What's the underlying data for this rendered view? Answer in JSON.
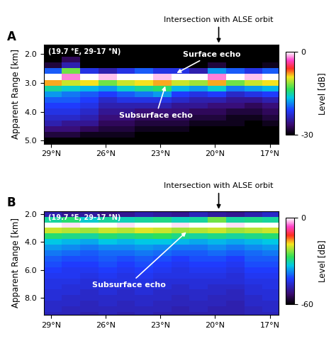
{
  "chart_data": [
    {
      "type": "heatmap",
      "panel": "A",
      "subtitle": "(19.7 °E, 29-17 °N)",
      "ylabel": "Apparent Range [km]",
      "xlim": [
        29.4,
        16.5
      ],
      "xticks": [
        {
          "value": 29,
          "label": "29°N"
        },
        {
          "value": 26,
          "label": "26°N"
        },
        {
          "value": 23,
          "label": "23°N"
        },
        {
          "value": 20,
          "label": "20°N"
        },
        {
          "value": 17,
          "label": "17°N"
        }
      ],
      "ylim": [
        5.1,
        1.7
      ],
      "yticks": [
        {
          "value": 2,
          "label": "2.0"
        },
        {
          "value": 3,
          "label": "3.0"
        },
        {
          "value": 4,
          "label": "4.0"
        },
        {
          "value": 5,
          "label": "5.0"
        }
      ],
      "x_edges": [
        29.4,
        28.4,
        27.4,
        26.4,
        25.4,
        24.4,
        23.4,
        22.4,
        21.4,
        20.4,
        19.4,
        18.4,
        17.4,
        16.5
      ],
      "y_edges": [
        1.7,
        1.9,
        2.1,
        2.3,
        2.5,
        2.7,
        2.9,
        3.1,
        3.3,
        3.5,
        3.7,
        3.9,
        4.1,
        4.3,
        4.5,
        4.7,
        4.9,
        5.1
      ],
      "cells": [
        [
          -30,
          -30,
          -30,
          -30,
          -30,
          -30,
          -30,
          -30,
          -30,
          -30,
          -30,
          -30,
          -30
        ],
        [
          -30,
          -30,
          -30,
          -30,
          -30,
          -30,
          -30,
          -30,
          -30,
          -30,
          -30,
          -30,
          -30
        ],
        [
          -30,
          -27,
          -30,
          -30,
          -30,
          -30,
          -30,
          -30,
          -30,
          -30,
          -30,
          -30,
          -30
        ],
        [
          -28,
          -24,
          -30,
          -30,
          -30,
          -30,
          -30,
          -30,
          -30,
          -28,
          -30,
          -30,
          -29
        ],
        [
          -20,
          -12,
          -22,
          -24,
          -22,
          -20,
          -22,
          -22,
          -24,
          -18,
          -20,
          -22,
          -20
        ],
        [
          0,
          -2,
          0,
          -1,
          0,
          0,
          -1,
          0,
          0,
          -2,
          0,
          -1,
          0
        ],
        [
          -8,
          -10,
          -9,
          -12,
          -10,
          -9,
          -8,
          -10,
          -11,
          -8,
          -12,
          -10,
          -9
        ],
        [
          -15,
          -16,
          -17,
          -18,
          -16,
          -15,
          -14,
          -17,
          -18,
          -16,
          -19,
          -18,
          -17
        ],
        [
          -18,
          -19,
          -20,
          -21,
          -20,
          -19,
          -18,
          -21,
          -22,
          -21,
          -23,
          -22,
          -21
        ],
        [
          -20,
          -20,
          -21,
          -23,
          -22,
          -22,
          -22,
          -23,
          -24,
          -24,
          -25,
          -25,
          -24
        ],
        [
          -21,
          -21,
          -22,
          -24,
          -24,
          -24,
          -24,
          -25,
          -25,
          -26,
          -26,
          -27,
          -26
        ],
        [
          -22,
          -22,
          -23,
          -25,
          -25,
          -26,
          -26,
          -26,
          -27,
          -27,
          -28,
          -28,
          -27
        ],
        [
          -23,
          -23,
          -24,
          -26,
          -26,
          -27,
          -27,
          -27,
          -28,
          -28,
          -29,
          -29,
          -28
        ],
        [
          -24,
          -25,
          -25,
          -27,
          -27,
          -28,
          -28,
          -28,
          -29,
          -29,
          -29,
          -30,
          -29
        ],
        [
          -26,
          -26,
          -27,
          -28,
          -28,
          -29,
          -29,
          -29,
          -30,
          -30,
          -30,
          -30,
          -30
        ],
        [
          -28,
          -28,
          -29,
          -29,
          -29,
          -30,
          -30,
          -30,
          -30,
          -30,
          -30,
          -30,
          -30
        ],
        [
          -30,
          -30,
          -30,
          -30,
          -30,
          -30,
          -30,
          -30,
          -30,
          -30,
          -30,
          -30,
          -30
        ]
      ],
      "colorbar": {
        "label": "Level [dB]",
        "range": [
          -30,
          0
        ],
        "ticks": [
          0,
          -30
        ]
      },
      "annotations": [
        {
          "text": "Intersection with ALSE orbit",
          "x": 19.8
        },
        {
          "text": "Surface echo",
          "x": 22.2,
          "y": 2.7
        },
        {
          "text": "Subsurface echo",
          "x": 22.7,
          "y": 3.05
        }
      ]
    },
    {
      "type": "heatmap",
      "panel": "B",
      "subtitle": "(19.7 °E, 29-17 °N)",
      "ylabel": "Apparent Range [km]",
      "xlim": [
        29.4,
        16.5
      ],
      "xticks": [
        {
          "value": 29,
          "label": "29°N"
        },
        {
          "value": 26,
          "label": "26°N"
        },
        {
          "value": 23,
          "label": "23°N"
        },
        {
          "value": 20,
          "label": "20°N"
        },
        {
          "value": 17,
          "label": "17°N"
        }
      ],
      "ylim": [
        9.2,
        1.8
      ],
      "yticks": [
        {
          "value": 2,
          "label": "2.0"
        },
        {
          "value": 4,
          "label": "4.0"
        },
        {
          "value": 6,
          "label": "6.0"
        },
        {
          "value": 8,
          "label": "8.0"
        }
      ],
      "x_edges": [
        29.4,
        28.4,
        27.4,
        26.4,
        25.4,
        24.4,
        23.4,
        22.4,
        21.4,
        20.4,
        19.4,
        18.4,
        17.4,
        16.5
      ],
      "y_edges": [
        1.8,
        2.2,
        2.6,
        3.0,
        3.4,
        3.8,
        4.2,
        4.6,
        5.0,
        5.4,
        5.8,
        6.2,
        6.6,
        7.0,
        7.4,
        7.8,
        8.2,
        8.6,
        9.0,
        9.4
      ],
      "cells": [
        [
          -48,
          -50,
          -49,
          -51,
          -50,
          -48,
          -49,
          -50,
          -47,
          -49,
          -50,
          -48,
          -46
        ],
        [
          -30,
          -28,
          -32,
          -30,
          -31,
          -30,
          -29,
          -31,
          -30,
          -24,
          -30,
          -29,
          -30
        ],
        [
          0,
          -1,
          0,
          0,
          -1,
          0,
          0,
          -1,
          0,
          0,
          -1,
          0,
          0
        ],
        [
          -20,
          -21,
          -22,
          -20,
          -21,
          -19,
          -20,
          -22,
          -21,
          -20,
          -22,
          -21,
          -20
        ],
        [
          -28,
          -29,
          -30,
          -28,
          -29,
          -28,
          -27,
          -29,
          -30,
          -29,
          -30,
          -29,
          -28
        ],
        [
          -33,
          -34,
          -35,
          -33,
          -34,
          -33,
          -33,
          -34,
          -35,
          -34,
          -35,
          -34,
          -33
        ],
        [
          -36,
          -37,
          -38,
          -37,
          -37,
          -36,
          -37,
          -38,
          -38,
          -37,
          -38,
          -37,
          -36
        ],
        [
          -38,
          -39,
          -40,
          -39,
          -39,
          -38,
          -39,
          -40,
          -40,
          -39,
          -40,
          -39,
          -38
        ],
        [
          -40,
          -41,
          -41,
          -40,
          -41,
          -40,
          -41,
          -42,
          -41,
          -41,
          -42,
          -40,
          -40
        ],
        [
          -41,
          -42,
          -42,
          -41,
          -42,
          -41,
          -42,
          -43,
          -42,
          -42,
          -43,
          -41,
          -41
        ],
        [
          -42,
          -43,
          -43,
          -42,
          -43,
          -42,
          -43,
          -44,
          -43,
          -43,
          -44,
          -42,
          -42
        ],
        [
          -43,
          -43,
          -44,
          -43,
          -44,
          -43,
          -44,
          -44,
          -44,
          -44,
          -45,
          -43,
          -43
        ],
        [
          -44,
          -44,
          -45,
          -44,
          -44,
          -44,
          -45,
          -45,
          -45,
          -45,
          -45,
          -44,
          -44
        ],
        [
          -44,
          -45,
          -45,
          -45,
          -45,
          -45,
          -45,
          -46,
          -45,
          -46,
          -46,
          -45,
          -44
        ],
        [
          -45,
          -45,
          -46,
          -45,
          -46,
          -45,
          -46,
          -46,
          -46,
          -46,
          -47,
          -45,
          -45
        ],
        [
          -45,
          -46,
          -46,
          -46,
          -46,
          -46,
          -46,
          -47,
          -46,
          -47,
          -47,
          -46,
          -45
        ],
        [
          -46,
          -46,
          -47,
          -46,
          -47,
          -46,
          -47,
          -47,
          -47,
          -47,
          -48,
          -46,
          -46
        ],
        [
          -46,
          -47,
          -47,
          -47,
          -47,
          -47,
          -47,
          -48,
          -47,
          -48,
          -48,
          -47,
          -46
        ],
        [
          -47,
          -47,
          -48,
          -47,
          -48,
          -47,
          -48,
          -48,
          -48,
          -48,
          -48,
          -47,
          -47
        ]
      ],
      "colorbar": {
        "label": "Level [dB]",
        "range": [
          -60,
          0
        ],
        "ticks": [
          0,
          -60
        ]
      },
      "annotations": [
        {
          "text": "Intersection with ALSE orbit",
          "x": 19.8
        },
        {
          "text": "Subsurface echo",
          "x": 21.5,
          "y": 3.2
        }
      ]
    }
  ]
}
